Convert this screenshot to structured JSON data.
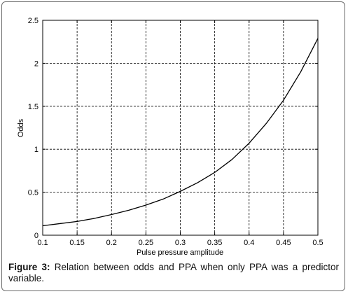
{
  "chart_data": {
    "type": "line",
    "xlabel": "Pulse pressure amplitude",
    "ylabel": "Odds",
    "xlim": [
      0.1,
      0.5
    ],
    "ylim": [
      0,
      2.5
    ],
    "grid": true,
    "x_ticks": [
      "0.1",
      "0.15",
      "0.2",
      "0.25",
      "0.3",
      "0.35",
      "0.4",
      "0.45",
      "0.5"
    ],
    "y_ticks": [
      "0",
      "0.5",
      "1",
      "1.5",
      "2",
      "2.5"
    ],
    "series": [
      {
        "color": "#000000",
        "x": [
          0.1,
          0.125,
          0.15,
          0.175,
          0.2,
          0.225,
          0.25,
          0.275,
          0.3,
          0.325,
          0.35,
          0.375,
          0.4,
          0.425,
          0.45,
          0.475,
          0.5
        ],
        "y": [
          0.11,
          0.135,
          0.16,
          0.195,
          0.24,
          0.29,
          0.35,
          0.42,
          0.51,
          0.61,
          0.73,
          0.88,
          1.07,
          1.3,
          1.57,
          1.9,
          2.29
        ]
      }
    ]
  },
  "caption": {
    "label": "Figure 3:",
    "text": " Relation between odds and PPA when only PPA was a predictor variable."
  }
}
